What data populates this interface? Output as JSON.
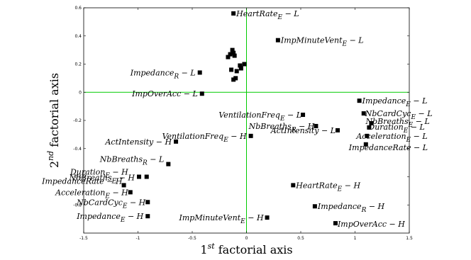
{
  "chart_data": {
    "type": "scatter",
    "xlabel": "1^{st} factorial axis",
    "ylabel": "2^{nd} factorial axis",
    "xlim": [
      -1.5,
      1.5
    ],
    "ylim": [
      -1,
      0.6
    ],
    "xticks": [
      "-1.5",
      "-1",
      "-0.5",
      "0",
      "0.5",
      "1",
      "1.5"
    ],
    "yticks": [
      "0.6",
      "0.4",
      "0.2",
      "0",
      "-0.2",
      "-0.4",
      "-0.6",
      "-0.8"
    ],
    "axis_lines_color": "#00cc00",
    "points": [
      {
        "x": -0.12,
        "y": 0.56,
        "label_main": "HeartRate",
        "label_sub": "E",
        "label_tail": " − L"
      },
      {
        "x": 0.29,
        "y": 0.37,
        "label_main": "ImpMinuteVent",
        "label_sub": "E",
        "label_tail": " − L"
      },
      {
        "x": -0.43,
        "y": 0.14,
        "label_main": "Impedance",
        "label_sub": "R",
        "label_tail": " − L"
      },
      {
        "x": -0.41,
        "y": -0.01,
        "label_main": "ImpOverAcc − L",
        "label_sub": "",
        "label_tail": ""
      },
      {
        "x": 1.04,
        "y": -0.06,
        "label_main": "Impedance",
        "label_sub": "E",
        "label_tail": " − L"
      },
      {
        "x": 1.08,
        "y": -0.15,
        "label_main": "NbCardCyc",
        "label_sub": "E",
        "label_tail": " − L"
      },
      {
        "x": 0.52,
        "y": -0.16,
        "label_main": "VentilationFreq",
        "label_sub": "E",
        "label_tail": " − L"
      },
      {
        "x": 1.15,
        "y": -0.22,
        "label_main": "NbBreaths",
        "label_sub": "E",
        "label_tail": " − L"
      },
      {
        "x": 1.13,
        "y": -0.25,
        "label_main": "Duration",
        "label_sub": "E",
        "label_tail": " − L"
      },
      {
        "x": 0.64,
        "y": -0.24,
        "label_main": "NbBreaths",
        "label_sub": "R",
        "label_tail": " − H"
      },
      {
        "x": 0.84,
        "y": -0.27,
        "label_main": "ActIntensity − L",
        "label_sub": "",
        "label_tail": ""
      },
      {
        "x": 1.11,
        "y": -0.31,
        "label_main": "Acceleration",
        "label_sub": "E",
        "label_tail": " − L"
      },
      {
        "x": 0.04,
        "y": -0.31,
        "label_main": "VentilationFreq",
        "label_sub": "E",
        "label_tail": " − H"
      },
      {
        "x": 1.1,
        "y": -0.37,
        "label_main": "ImpedanceRate − L",
        "label_sub": "",
        "label_tail": ""
      },
      {
        "x": -0.65,
        "y": -0.35,
        "label_main": "ActIntensity − H",
        "label_sub": "",
        "label_tail": ""
      },
      {
        "x": -0.72,
        "y": -0.51,
        "label_main": "NbBreaths",
        "label_sub": "R",
        "label_tail": " − L"
      },
      {
        "x": -0.92,
        "y": -0.6,
        "label_main": "Duration",
        "label_sub": "E",
        "label_tail": " − H"
      },
      {
        "x": -0.99,
        "y": -0.6,
        "label_main": "NbBreaths",
        "label_sub": "E",
        "label_tail": " − H"
      },
      {
        "x": -1.13,
        "y": -0.66,
        "label_main": "ImpedanceRate − H",
        "label_sub": "",
        "label_tail": ""
      },
      {
        "x": -1.07,
        "y": -0.71,
        "label_main": "Acceleration",
        "label_sub": "E",
        "label_tail": " − H"
      },
      {
        "x": -0.91,
        "y": -0.78,
        "label_main": "NbCardCyc",
        "label_sub": "E",
        "label_tail": " − H"
      },
      {
        "x": -0.91,
        "y": -0.88,
        "label_main": "Impedance",
        "label_sub": "E",
        "label_tail": " − H"
      },
      {
        "x": 0.43,
        "y": -0.66,
        "label_main": "HeartRate",
        "label_sub": "E",
        "label_tail": " − H"
      },
      {
        "x": 0.63,
        "y": -0.81,
        "label_main": "Impedance",
        "label_sub": "R",
        "label_tail": " − H"
      },
      {
        "x": 0.19,
        "y": -0.89,
        "label_main": "ImpMinuteVent",
        "label_sub": "E",
        "label_tail": " − H"
      },
      {
        "x": 0.82,
        "y": -0.93,
        "label_main": "ImpOverAcc − H",
        "label_sub": "",
        "label_tail": ""
      },
      {
        "x": -0.13,
        "y": 0.3
      },
      {
        "x": -0.12,
        "y": 0.28
      },
      {
        "x": -0.15,
        "y": 0.27
      },
      {
        "x": -0.11,
        "y": 0.26
      },
      {
        "x": -0.17,
        "y": 0.25
      },
      {
        "x": -0.06,
        "y": 0.19
      },
      {
        "x": -0.02,
        "y": 0.2
      },
      {
        "x": -0.05,
        "y": 0.17
      },
      {
        "x": -0.14,
        "y": 0.16
      },
      {
        "x": -0.09,
        "y": 0.15
      },
      {
        "x": -0.1,
        "y": 0.1
      },
      {
        "x": -0.12,
        "y": 0.09
      }
    ]
  }
}
